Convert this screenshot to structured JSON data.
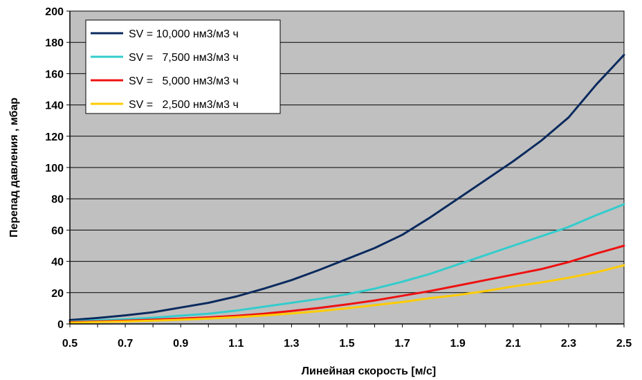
{
  "chart_data": {
    "type": "line",
    "xlabel": "Линейная скорость [м/с]",
    "ylabel": "Перепад давления   , мбар",
    "xlim": [
      0.5,
      2.5
    ],
    "ylim": [
      0,
      200
    ],
    "x_ticks": [
      "0.5",
      "0.7",
      "0.9",
      "1.1",
      "1.3",
      "1.5",
      "1.7",
      "1.9",
      "2.1",
      "2.3",
      "2.5"
    ],
    "y_ticks": [
      "0",
      "20",
      "40",
      "60",
      "80",
      "100",
      "120",
      "140",
      "160",
      "180",
      "200"
    ],
    "grid": true,
    "legend_position": "top-left",
    "background": "#C0C0C0",
    "x": [
      0.5,
      0.6,
      0.7,
      0.8,
      0.9,
      1.0,
      1.1,
      1.2,
      1.3,
      1.4,
      1.5,
      1.6,
      1.7,
      1.8,
      1.9,
      2.0,
      2.1,
      2.2,
      2.3,
      2.4,
      2.5
    ],
    "series": [
      {
        "name": "SV = 10,000 нм3/м3 ч",
        "color": "#0A2A5E",
        "values": [
          2.5,
          3.8,
          5.5,
          7.5,
          10.5,
          13.5,
          17.5,
          22.5,
          28,
          34.5,
          41.5,
          48.5,
          57,
          68,
          80,
          92,
          104,
          117,
          132,
          153,
          172
        ]
      },
      {
        "name": "SV =   7,500 нм3/м3 ч",
        "color": "#33CCCC",
        "values": [
          1.5,
          2.3,
          3,
          4,
          5.3,
          6.5,
          8.5,
          11,
          13.5,
          16,
          19,
          22.5,
          27,
          32,
          38,
          44,
          50,
          56,
          62,
          69.5,
          76.5
        ]
      },
      {
        "name": "SV =   5,000 нм3/м3 ч",
        "color": "#EE1111",
        "values": [
          1.2,
          1.6,
          2.1,
          2.7,
          3.4,
          4.2,
          5.2,
          6.5,
          8.3,
          10.2,
          12.5,
          15,
          18,
          21,
          24.5,
          28,
          31.5,
          35,
          39.5,
          45,
          50
        ]
      },
      {
        "name": "SV =   2,500 нм3/м3 ч",
        "color": "#FFCC00",
        "values": [
          0.8,
          1.2,
          1.6,
          2.1,
          2.7,
          3.4,
          4.3,
          5.4,
          6.7,
          8.2,
          10,
          12,
          14,
          16.5,
          18.5,
          21,
          24,
          26.5,
          29.5,
          33,
          37.5
        ]
      }
    ]
  }
}
